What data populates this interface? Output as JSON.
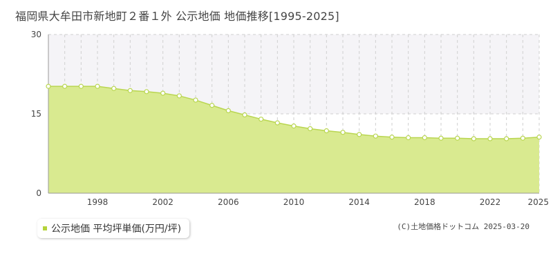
{
  "chart_data": {
    "type": "area",
    "title": "福岡県大牟田市新地町２番１外 公示地価 地価推移[1995-2025]",
    "xlabel": "",
    "ylabel": "",
    "ylim": [
      0,
      30
    ],
    "xlim": [
      1995,
      2025
    ],
    "yticks": [
      "0",
      "15",
      "30"
    ],
    "xticks": [
      "1998",
      "2002",
      "2006",
      "2010",
      "2014",
      "2018",
      "2022",
      "2025"
    ],
    "grid": true,
    "legend_position": "bottom-left",
    "x": [
      1995,
      1996,
      1997,
      1998,
      1999,
      2000,
      2001,
      2002,
      2003,
      2004,
      2005,
      2006,
      2007,
      2008,
      2009,
      2010,
      2011,
      2012,
      2013,
      2014,
      2015,
      2016,
      2017,
      2018,
      2019,
      2020,
      2021,
      2022,
      2023,
      2024,
      2025
    ],
    "series": [
      {
        "name": "公示地価 平均坪単価(万円/坪)",
        "color": "#d4e88f",
        "values": [
          20.2,
          20.2,
          20.2,
          20.2,
          19.8,
          19.4,
          19.2,
          18.9,
          18.4,
          17.6,
          16.6,
          15.6,
          14.8,
          14.0,
          13.3,
          12.7,
          12.2,
          11.8,
          11.5,
          11.1,
          10.8,
          10.6,
          10.5,
          10.5,
          10.4,
          10.4,
          10.3,
          10.3,
          10.3,
          10.4,
          10.6
        ]
      }
    ]
  },
  "legend": {
    "label": "公示地価 平均坪単価(万円/坪)",
    "swatch_color": "#b5d33a"
  },
  "copyright": "(C)土地価格ドットコム 2025-03-20",
  "colors": {
    "area_fill": "#d9ea90",
    "line": "#b9d650",
    "marker_stroke": "#b9d650",
    "marker_fill": "#ffffff",
    "band": "#f5f4f7"
  }
}
